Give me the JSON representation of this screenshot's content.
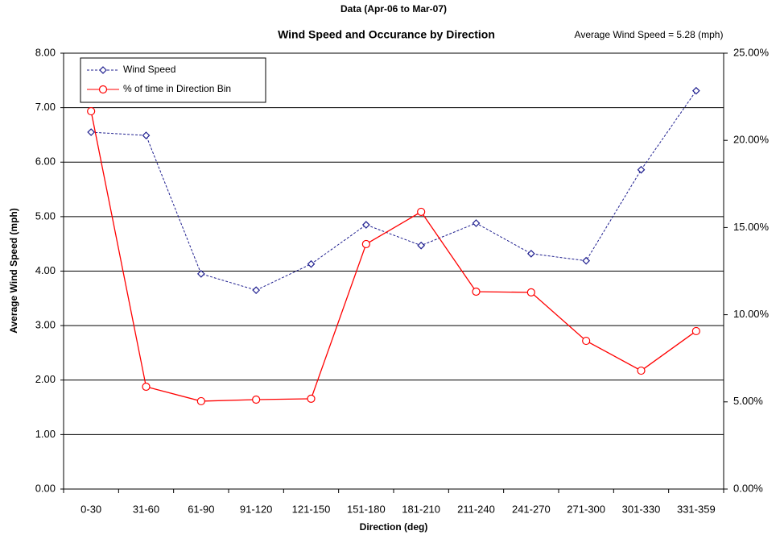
{
  "chart_data": {
    "type": "line",
    "subtitle": "Data (Apr-06 to Mar-07)",
    "title": "Wind Speed and Occurance by Direction",
    "annotation": "Average Wind Speed = 5.28 (mph)",
    "x_label": "Direction (deg)",
    "y_label": "Average Wind Speed (mph)",
    "categories": [
      "0-30",
      "31-60",
      "61-90",
      "91-120",
      "121-150",
      "151-180",
      "181-210",
      "211-240",
      "241-270",
      "271-300",
      "301-330",
      "331-359"
    ],
    "series": [
      {
        "name": "Wind Speed",
        "color": "#1f1f8f",
        "dashed": true,
        "marker": "diamond",
        "values": [
          6.55,
          6.49,
          3.95,
          3.65,
          4.13,
          4.85,
          4.47,
          4.88,
          4.32,
          4.19,
          5.86,
          7.31
        ]
      },
      {
        "name": "% of time in Direction Bin",
        "color": "#ff0000",
        "marker": "circle",
        "axis": "y2",
        "values": [
          21.67,
          5.87,
          5.04,
          5.13,
          5.18,
          14.05,
          15.9,
          11.32,
          11.28,
          8.5,
          6.79,
          9.06
        ]
      }
    ],
    "ylim": [
      0,
      8
    ],
    "yticks": [
      {
        "value": 0,
        "label": "0.00"
      },
      {
        "value": 1,
        "label": "1.00"
      },
      {
        "value": 2,
        "label": "2.00"
      },
      {
        "value": 3,
        "label": "3.00"
      },
      {
        "value": 4,
        "label": "4.00"
      },
      {
        "value": 5,
        "label": "5.00"
      },
      {
        "value": 6,
        "label": "6.00"
      },
      {
        "value": 7,
        "label": "7.00"
      },
      {
        "value": 8,
        "label": "8.00"
      }
    ],
    "y2lim": [
      0,
      25
    ],
    "y2ticks": [
      {
        "value": 0,
        "label": "0.00%"
      },
      {
        "value": 5,
        "label": "5.00%"
      },
      {
        "value": 10,
        "label": "10.00%"
      },
      {
        "value": 15,
        "label": "15.00%"
      },
      {
        "value": 20,
        "label": "20.00%"
      },
      {
        "value": 25,
        "label": "25.00%"
      }
    ],
    "grid": true,
    "legend": "top-left"
  }
}
